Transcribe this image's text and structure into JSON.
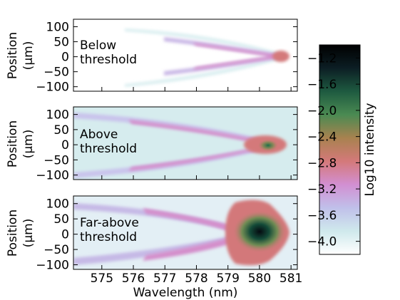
{
  "chart_data": {
    "type": "heatmap",
    "x_ticks": [
      575,
      576,
      577,
      578,
      579,
      580,
      581
    ],
    "xlim": [
      574.1,
      581.2
    ],
    "xlabel": "Wavelength (nm)",
    "colorbar": {
      "label": "Log10 intensity",
      "ticks": [
        "−1.2",
        "−1.6",
        "−2.0",
        "−2.4",
        "−2.8",
        "−3.2",
        "−3.6",
        "−4.0"
      ],
      "tick_values": [
        -1.2,
        -1.6,
        -2.0,
        -2.4,
        -2.8,
        -3.2,
        -3.6,
        -4.0
      ],
      "range": [
        -4.2,
        -1.0
      ],
      "colormap": "cubehelix_r",
      "stops": [
        "#ffffff",
        "#cfe9ec",
        "#c0c0ea",
        "#d28fd2",
        "#d4797a",
        "#a8824f",
        "#4a8a52",
        "#1e5a40",
        "#0c1e24",
        "#000000"
      ]
    },
    "panels": [
      {
        "annotation": [
          "Below",
          "threshold"
        ],
        "ylabel": [
          "Position",
          "(μm)"
        ],
        "y_ticks": [
          100,
          50,
          0,
          -50,
          -100
        ],
        "ylim": [
          -115,
          125
        ],
        "peak_wavelength": 580.6,
        "max_log_intensity": -2.6
      },
      {
        "annotation": [
          "Above",
          "threshold"
        ],
        "ylabel": [
          "Position",
          "(μm)"
        ],
        "y_ticks": [
          100,
          50,
          0,
          -50,
          -100
        ],
        "ylim": [
          -115,
          125
        ],
        "peak_wavelength": 580.3,
        "max_log_intensity": -2.0
      },
      {
        "annotation": [
          "Far-above",
          "threshold"
        ],
        "ylabel": [
          "Position",
          "(μm)"
        ],
        "y_ticks": [
          100,
          50,
          0,
          -50,
          -100
        ],
        "ylim": [
          -115,
          125
        ],
        "peak_wavelength": 580.0,
        "max_log_intensity": -1.0
      }
    ]
  }
}
